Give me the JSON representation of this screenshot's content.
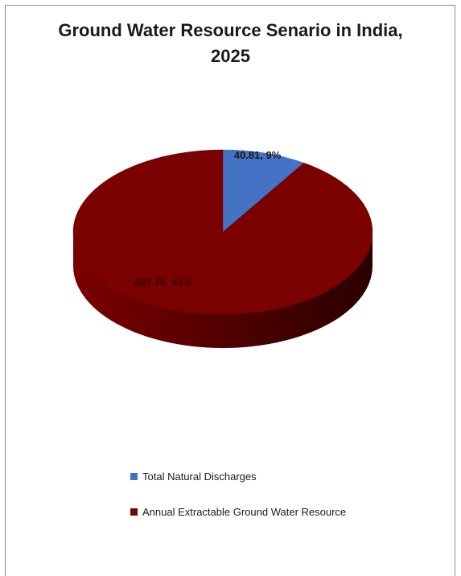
{
  "chart_data": {
    "type": "pie",
    "title_lines": [
      "Ground Water Resource Senario in India,",
      "2025"
    ],
    "slices": [
      {
        "name": "Total Natural Discharges",
        "value": 40.81,
        "percent_label": "9%",
        "data_label": "40.81, 9%",
        "color": "#4472c4",
        "shade_color": "#2f528f"
      },
      {
        "name": "Annual Extractable Ground Water Resource",
        "value": 407.75,
        "percent_label": "91%",
        "data_label": "407.75, 91%",
        "color": "#7b0000",
        "shade_color": "#4a0000"
      }
    ],
    "legend_position": "bottom",
    "style": "3d"
  }
}
